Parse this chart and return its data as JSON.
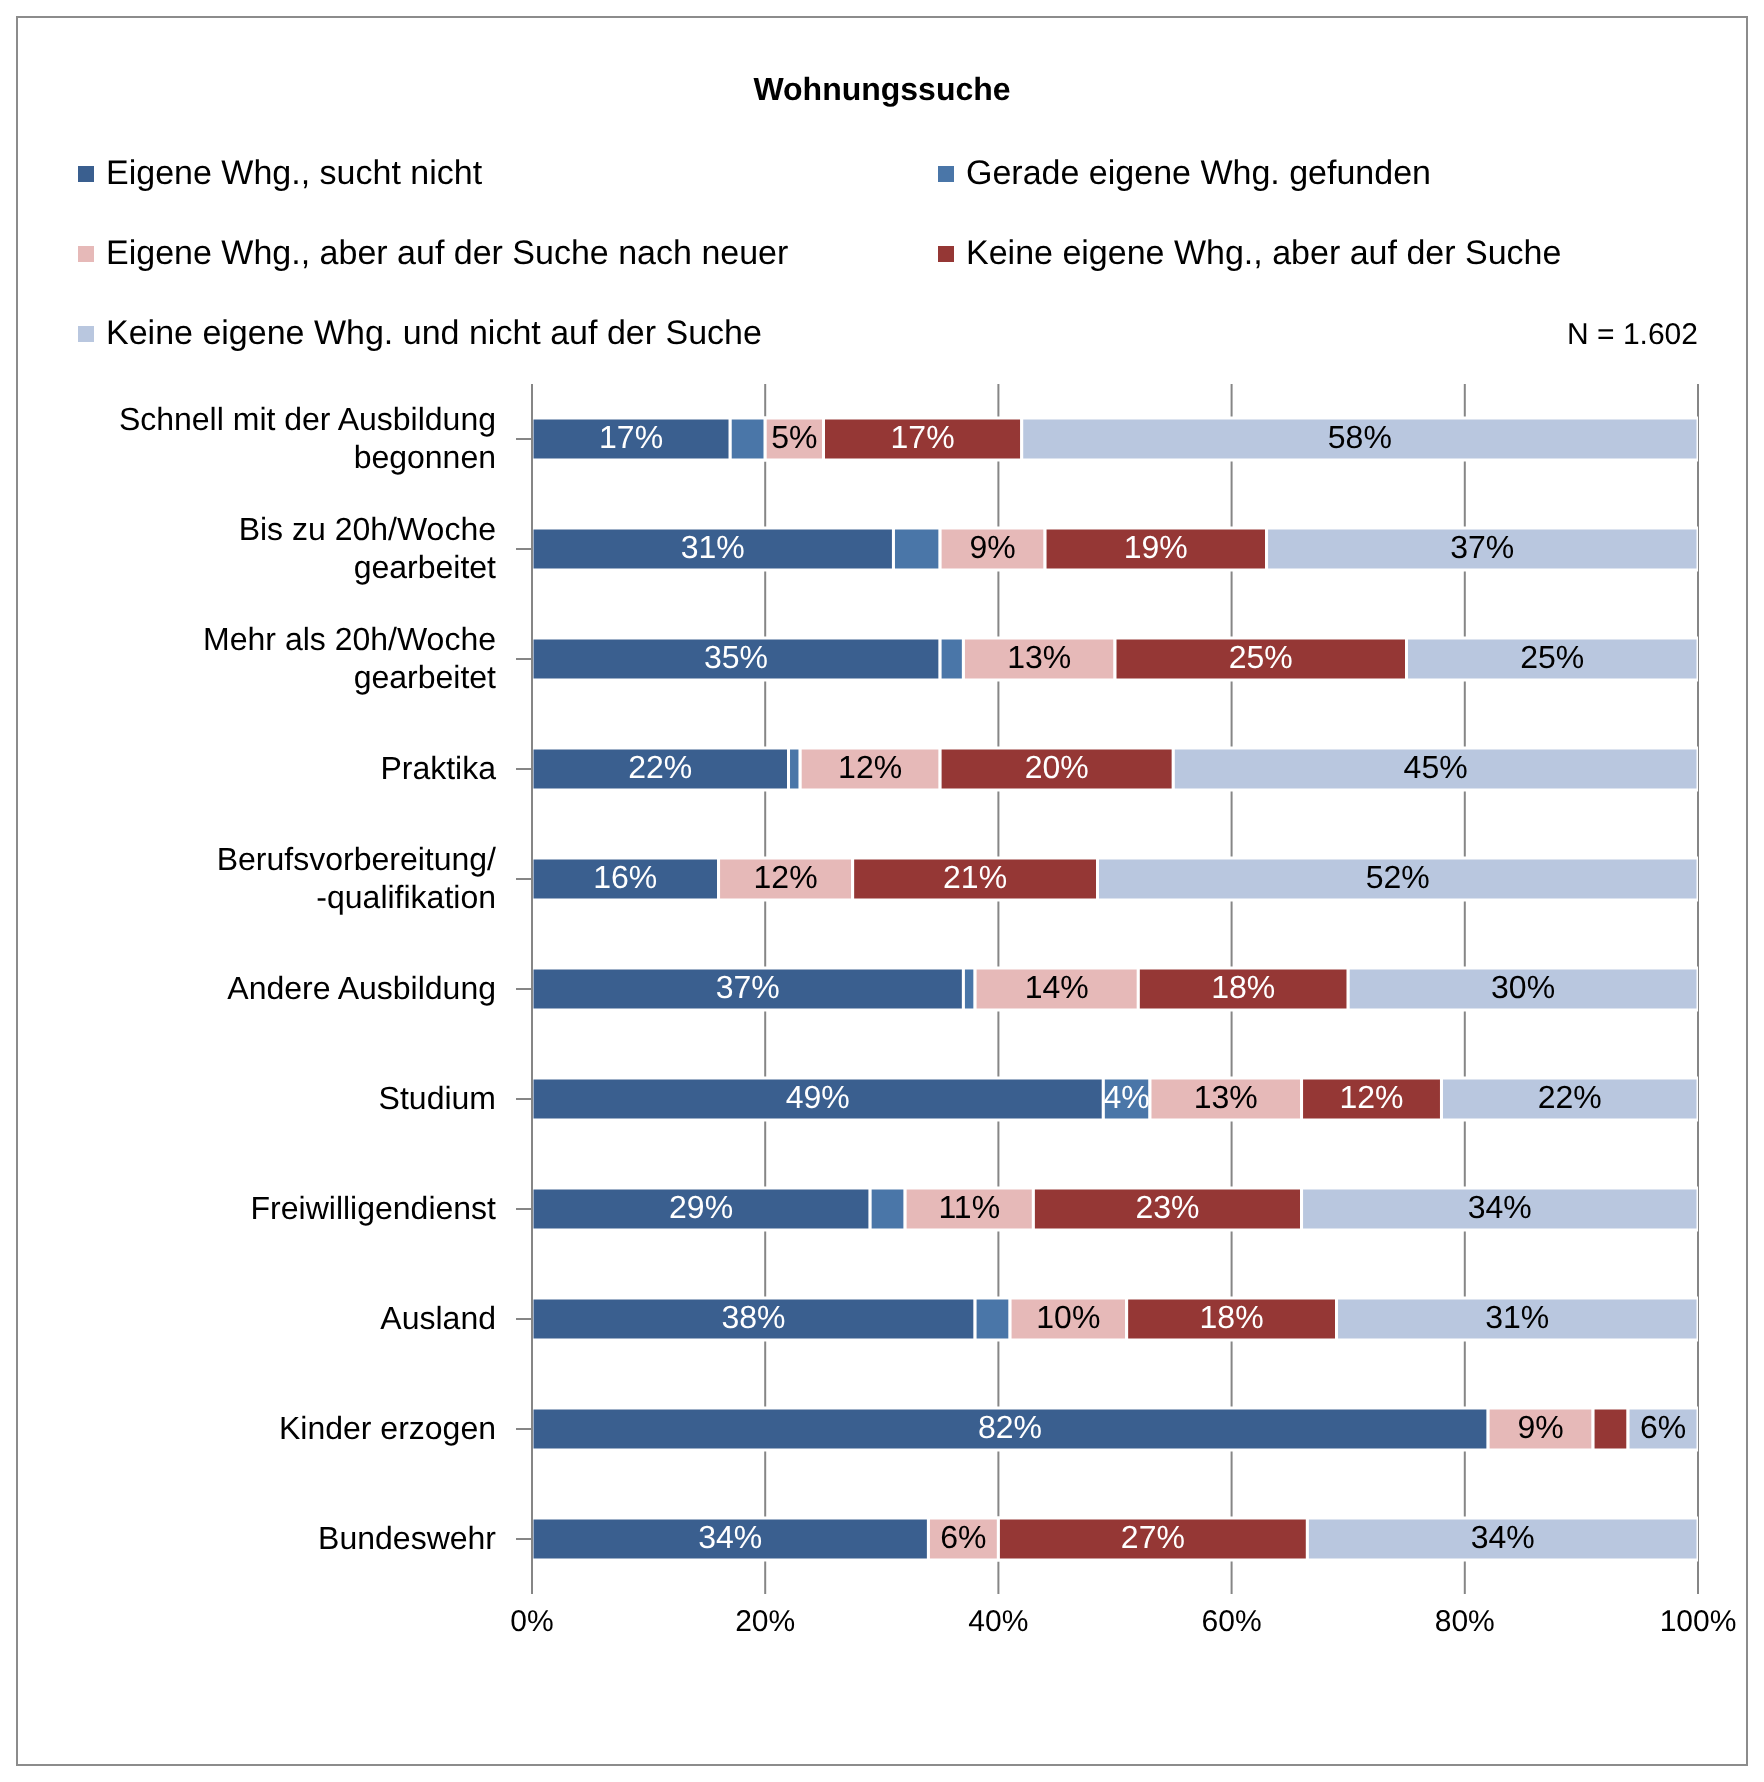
{
  "chart_data": {
    "type": "bar",
    "orientation": "horizontal",
    "stacked": true,
    "title": "Wohnungssuche",
    "annotations": [
      "N = 1.602"
    ],
    "legend": "top",
    "grid": "x",
    "categories": [
      "Schnell mit der Ausbildung begonnen",
      "Bis zu 20h/Woche gearbeitet",
      "Mehr als 20h/Woche gearbeitet",
      "Praktika",
      "Berufsvorbereitung/-qualifikation",
      "Andere Ausbildung",
      "Studium",
      "Freiwilligendienst",
      "Ausland",
      "Kinder erzogen",
      "Bundeswehr"
    ],
    "xlim": [
      0,
      100
    ],
    "xticks": [
      {
        "value": 0,
        "label": "0%"
      },
      {
        "value": 20,
        "label": "20%"
      },
      {
        "value": 40,
        "label": "40%"
      },
      {
        "value": 60,
        "label": "60%"
      },
      {
        "value": 80,
        "label": "80%"
      },
      {
        "value": 100,
        "label": "100%"
      }
    ],
    "series": [
      {
        "name": "Eigene Whg., sucht nicht",
        "color": "#3a5f8f",
        "values": [
          17,
          31,
          35,
          22,
          16,
          37,
          49,
          29,
          38,
          82,
          34
        ],
        "value_labels": [
          "17%",
          "31%",
          "35%",
          "22%",
          "16%",
          "37%",
          "49%",
          "29%",
          "38%",
          "82%",
          "34%"
        ]
      },
      {
        "name": "Gerade eigene Whg. gefunden",
        "color": "#4a76a8",
        "values": [
          3,
          4,
          2,
          1,
          null,
          1,
          4,
          3,
          3,
          null,
          null
        ],
        "value_labels": [
          null,
          null,
          null,
          null,
          null,
          null,
          "4%",
          null,
          null,
          null,
          null
        ]
      },
      {
        "name": "Eigene Whg., aber auf der Suche nach neuer",
        "color": "#e6b9b8",
        "values": [
          5,
          9,
          13,
          12,
          11.5,
          14,
          13,
          11,
          10,
          9,
          6
        ],
        "value_labels": [
          "5%",
          "9%",
          "13%",
          "12%",
          "12%",
          "14%",
          "13%",
          "11%",
          "10%",
          "9%",
          "6%"
        ]
      },
      {
        "name": "Keine eigene Whg., aber auf der Suche",
        "color": "#953735",
        "values": [
          17,
          19,
          25,
          20,
          21,
          18,
          12,
          23,
          18,
          3,
          26.5
        ],
        "value_labels": [
          "17%",
          "19%",
          "25%",
          "20%",
          "21%",
          "18%",
          "12%",
          "23%",
          "18%",
          null,
          "27%"
        ]
      },
      {
        "name": "Keine eigene Whg. und nicht auf der Suche",
        "color": "#b9c7df",
        "values": [
          58,
          37,
          25,
          45,
          51.5,
          30,
          22,
          34,
          31,
          6,
          33.5
        ],
        "value_labels": [
          "58%",
          "37%",
          "25%",
          "45%",
          "52%",
          "30%",
          "22%",
          "34%",
          "31%",
          "6%",
          "34%"
        ]
      }
    ]
  }
}
